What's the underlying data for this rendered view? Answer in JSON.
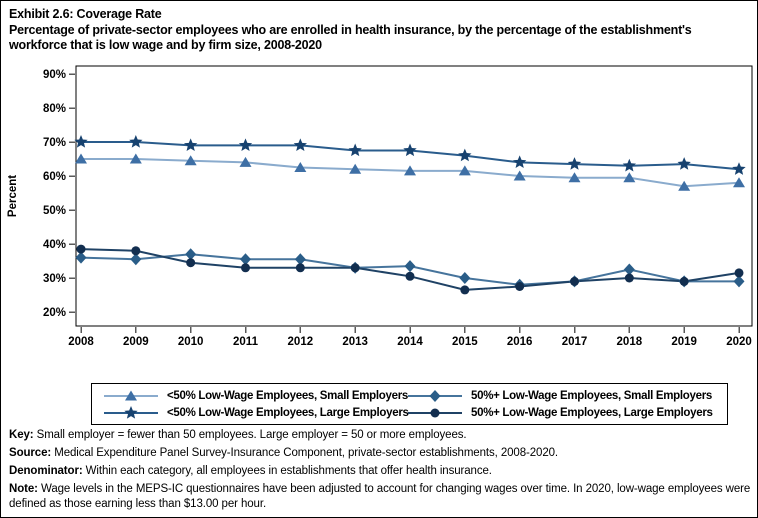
{
  "title": "Exhibit 2.6: Coverage Rate",
  "subtitle": "Percentage of private-sector employees who are enrolled in health insurance, by the percentage of the establishment's workforce that is low wage and by firm size, 2008-2020",
  "chart_data": {
    "type": "line",
    "title": "Coverage Rate",
    "xlabel": "",
    "ylabel": "Percent",
    "ylim": [
      20,
      90
    ],
    "yticks": [
      90,
      80,
      70,
      60,
      50,
      40,
      30,
      20
    ],
    "ytick_suffix": "%",
    "grid": false,
    "legend_position": "bottom",
    "x": [
      2008,
      2009,
      2010,
      2011,
      2012,
      2013,
      2014,
      2015,
      2016,
      2017,
      2018,
      2019,
      2020
    ],
    "series": [
      {
        "name": "<50% Low-Wage Employees, Small Employers",
        "marker": "triangle",
        "marker_color": "#3e6fa5",
        "line_color": "#8aabcd",
        "values": [
          65,
          65,
          64.5,
          64,
          62.5,
          62,
          61.5,
          61.5,
          60,
          59.5,
          59.5,
          57,
          58
        ]
      },
      {
        "name": "<50% Low-Wage Employees, Large Employers",
        "marker": "star",
        "marker_color": "#17426f",
        "line_color": "#2a5c8c",
        "values": [
          70,
          70,
          69,
          69,
          69,
          67.5,
          67.5,
          66,
          64,
          63.5,
          63,
          63.5,
          62
        ]
      },
      {
        "name": "50%+ Low-Wage Employees, Small Employers",
        "marker": "diamond",
        "marker_color": "#2a5d88",
        "line_color": "#46749c",
        "values": [
          36,
          35.5,
          37,
          35.5,
          35.5,
          33,
          33.5,
          30,
          28,
          29,
          32.5,
          29,
          29
        ]
      },
      {
        "name": "50%+ Low-Wage Employees, Large Employers",
        "marker": "circle",
        "marker_color": "#122e4f",
        "line_color": "#1f4265",
        "values": [
          38.5,
          38,
          34.5,
          33,
          33,
          33,
          30.5,
          26.5,
          27.5,
          29,
          30,
          29,
          31.5
        ]
      }
    ]
  },
  "footnotes": [
    {
      "label": "Key:",
      "text": " Small employer = fewer than 50 employees. Large employer = 50 or more employees."
    },
    {
      "label": "Source:",
      "text": " Medical Expenditure Panel Survey-Insurance Component, private-sector establishments, 2008-2020."
    },
    {
      "label": "Denominator:",
      "text": " Within each category, all employees in establishments that offer health insurance."
    },
    {
      "label": "Note:",
      "text": " Wage levels in the MEPS-IC questionnaires have been adjusted to account for changing wages over time. In 2020, low-wage employees were defined as those earning less than $13.00 per hour."
    }
  ]
}
